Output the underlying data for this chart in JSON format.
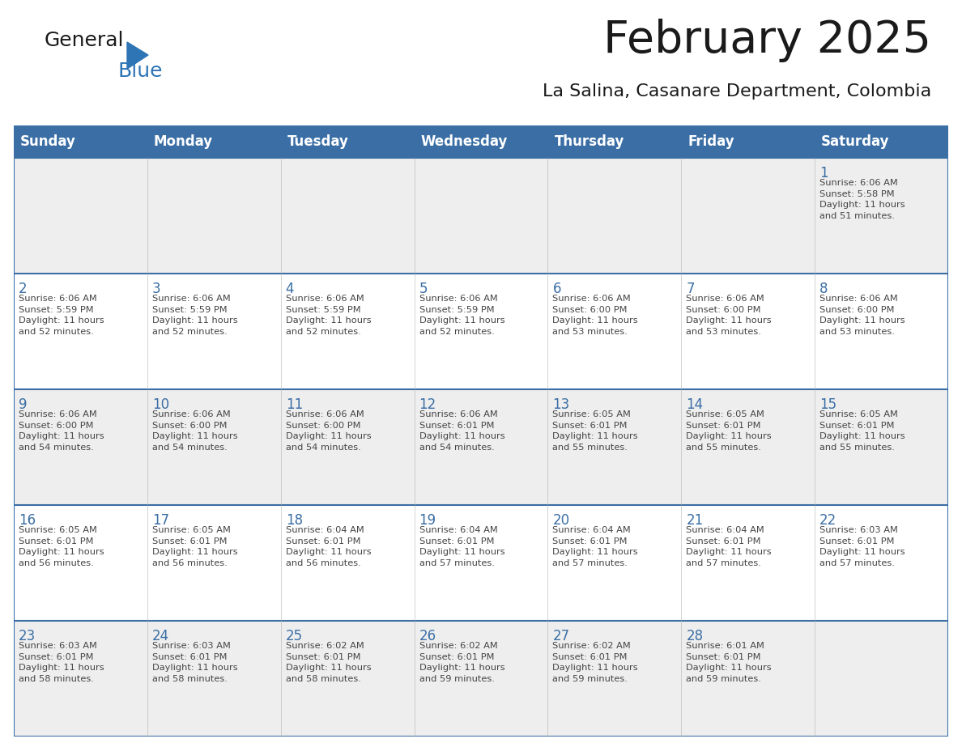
{
  "title": "February 2025",
  "subtitle": "La Salina, Casanare Department, Colombia",
  "header_bg": "#3A6EA5",
  "header_text_color": "#FFFFFF",
  "cell_bg_light": "#EEEEEE",
  "cell_bg_white": "#FFFFFF",
  "day_number_color": "#3A6EA5",
  "info_text_color": "#444444",
  "border_color": "#3A6EA5",
  "grid_line_color": "#AAAAAA",
  "days_of_week": [
    "Sunday",
    "Monday",
    "Tuesday",
    "Wednesday",
    "Thursday",
    "Friday",
    "Saturday"
  ],
  "calendar_data": [
    [
      null,
      null,
      null,
      null,
      null,
      null,
      {
        "day": "1",
        "sunrise": "6:06 AM",
        "sunset": "5:58 PM",
        "daylight": "11 hours\nand 51 minutes."
      }
    ],
    [
      {
        "day": "2",
        "sunrise": "6:06 AM",
        "sunset": "5:59 PM",
        "daylight": "11 hours\nand 52 minutes."
      },
      {
        "day": "3",
        "sunrise": "6:06 AM",
        "sunset": "5:59 PM",
        "daylight": "11 hours\nand 52 minutes."
      },
      {
        "day": "4",
        "sunrise": "6:06 AM",
        "sunset": "5:59 PM",
        "daylight": "11 hours\nand 52 minutes."
      },
      {
        "day": "5",
        "sunrise": "6:06 AM",
        "sunset": "5:59 PM",
        "daylight": "11 hours\nand 52 minutes."
      },
      {
        "day": "6",
        "sunrise": "6:06 AM",
        "sunset": "6:00 PM",
        "daylight": "11 hours\nand 53 minutes."
      },
      {
        "day": "7",
        "sunrise": "6:06 AM",
        "sunset": "6:00 PM",
        "daylight": "11 hours\nand 53 minutes."
      },
      {
        "day": "8",
        "sunrise": "6:06 AM",
        "sunset": "6:00 PM",
        "daylight": "11 hours\nand 53 minutes."
      }
    ],
    [
      {
        "day": "9",
        "sunrise": "6:06 AM",
        "sunset": "6:00 PM",
        "daylight": "11 hours\nand 54 minutes."
      },
      {
        "day": "10",
        "sunrise": "6:06 AM",
        "sunset": "6:00 PM",
        "daylight": "11 hours\nand 54 minutes."
      },
      {
        "day": "11",
        "sunrise": "6:06 AM",
        "sunset": "6:00 PM",
        "daylight": "11 hours\nand 54 minutes."
      },
      {
        "day": "12",
        "sunrise": "6:06 AM",
        "sunset": "6:01 PM",
        "daylight": "11 hours\nand 54 minutes."
      },
      {
        "day": "13",
        "sunrise": "6:05 AM",
        "sunset": "6:01 PM",
        "daylight": "11 hours\nand 55 minutes."
      },
      {
        "day": "14",
        "sunrise": "6:05 AM",
        "sunset": "6:01 PM",
        "daylight": "11 hours\nand 55 minutes."
      },
      {
        "day": "15",
        "sunrise": "6:05 AM",
        "sunset": "6:01 PM",
        "daylight": "11 hours\nand 55 minutes."
      }
    ],
    [
      {
        "day": "16",
        "sunrise": "6:05 AM",
        "sunset": "6:01 PM",
        "daylight": "11 hours\nand 56 minutes."
      },
      {
        "day": "17",
        "sunrise": "6:05 AM",
        "sunset": "6:01 PM",
        "daylight": "11 hours\nand 56 minutes."
      },
      {
        "day": "18",
        "sunrise": "6:04 AM",
        "sunset": "6:01 PM",
        "daylight": "11 hours\nand 56 minutes."
      },
      {
        "day": "19",
        "sunrise": "6:04 AM",
        "sunset": "6:01 PM",
        "daylight": "11 hours\nand 57 minutes."
      },
      {
        "day": "20",
        "sunrise": "6:04 AM",
        "sunset": "6:01 PM",
        "daylight": "11 hours\nand 57 minutes."
      },
      {
        "day": "21",
        "sunrise": "6:04 AM",
        "sunset": "6:01 PM",
        "daylight": "11 hours\nand 57 minutes."
      },
      {
        "day": "22",
        "sunrise": "6:03 AM",
        "sunset": "6:01 PM",
        "daylight": "11 hours\nand 57 minutes."
      }
    ],
    [
      {
        "day": "23",
        "sunrise": "6:03 AM",
        "sunset": "6:01 PM",
        "daylight": "11 hours\nand 58 minutes."
      },
      {
        "day": "24",
        "sunrise": "6:03 AM",
        "sunset": "6:01 PM",
        "daylight": "11 hours\nand 58 minutes."
      },
      {
        "day": "25",
        "sunrise": "6:02 AM",
        "sunset": "6:01 PM",
        "daylight": "11 hours\nand 58 minutes."
      },
      {
        "day": "26",
        "sunrise": "6:02 AM",
        "sunset": "6:01 PM",
        "daylight": "11 hours\nand 59 minutes."
      },
      {
        "day": "27",
        "sunrise": "6:02 AM",
        "sunset": "6:01 PM",
        "daylight": "11 hours\nand 59 minutes."
      },
      {
        "day": "28",
        "sunrise": "6:01 AM",
        "sunset": "6:01 PM",
        "daylight": "11 hours\nand 59 minutes."
      },
      null
    ]
  ]
}
